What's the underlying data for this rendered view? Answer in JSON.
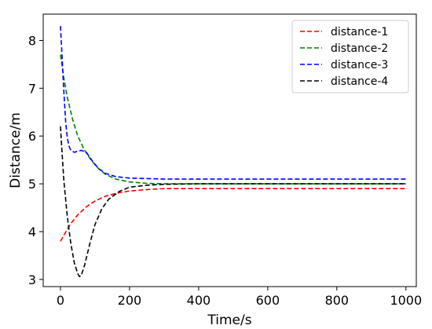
{
  "chart_data": {
    "type": "line",
    "title": "",
    "xlabel": "Time/s",
    "ylabel": "Distance/m",
    "xlim": [
      -50,
      1030
    ],
    "ylim": [
      2.85,
      8.55
    ],
    "xticks": [
      0,
      200,
      400,
      600,
      800,
      1000
    ],
    "yticks": [
      3,
      4,
      5,
      6,
      7,
      8
    ],
    "grid": false,
    "legend_position": "top-right",
    "line_style": "dashed",
    "series": [
      {
        "name": "distance-1",
        "color": "#ff0000",
        "points": [
          [
            0,
            3.8
          ],
          [
            5,
            3.86
          ],
          [
            15,
            3.99
          ],
          [
            30,
            4.17
          ],
          [
            50,
            4.35
          ],
          [
            75,
            4.52
          ],
          [
            100,
            4.64
          ],
          [
            130,
            4.74
          ],
          [
            160,
            4.8
          ],
          [
            200,
            4.85
          ],
          [
            250,
            4.88
          ],
          [
            300,
            4.9
          ],
          [
            400,
            4.9
          ],
          [
            600,
            4.9
          ],
          [
            800,
            4.9
          ],
          [
            1000,
            4.9
          ]
        ]
      },
      {
        "name": "distance-2",
        "color": "#008000",
        "points": [
          [
            0,
            7.7
          ],
          [
            10,
            7.2
          ],
          [
            20,
            6.8
          ],
          [
            35,
            6.35
          ],
          [
            50,
            6.0
          ],
          [
            70,
            5.7
          ],
          [
            90,
            5.48
          ],
          [
            110,
            5.32
          ],
          [
            130,
            5.2
          ],
          [
            160,
            5.1
          ],
          [
            200,
            5.04
          ],
          [
            250,
            5.01
          ],
          [
            300,
            5.0
          ],
          [
            500,
            5.0
          ],
          [
            1000,
            5.0
          ]
        ]
      },
      {
        "name": "distance-3",
        "color": "#0000ff",
        "points": [
          [
            0,
            8.3
          ],
          [
            5,
            7.6
          ],
          [
            10,
            6.9
          ],
          [
            15,
            6.3
          ],
          [
            20,
            5.95
          ],
          [
            25,
            5.78
          ],
          [
            30,
            5.7
          ],
          [
            40,
            5.66
          ],
          [
            50,
            5.68
          ],
          [
            60,
            5.7
          ],
          [
            75,
            5.66
          ],
          [
            90,
            5.5
          ],
          [
            110,
            5.32
          ],
          [
            130,
            5.22
          ],
          [
            160,
            5.15
          ],
          [
            200,
            5.12
          ],
          [
            300,
            5.1
          ],
          [
            500,
            5.1
          ],
          [
            1000,
            5.1
          ]
        ]
      },
      {
        "name": "distance-4",
        "color": "#000000",
        "points": [
          [
            0,
            6.2
          ],
          [
            5,
            5.6
          ],
          [
            10,
            5.05
          ],
          [
            20,
            4.3
          ],
          [
            30,
            3.75
          ],
          [
            40,
            3.35
          ],
          [
            50,
            3.12
          ],
          [
            55,
            3.06
          ],
          [
            60,
            3.08
          ],
          [
            70,
            3.3
          ],
          [
            85,
            3.75
          ],
          [
            100,
            4.15
          ],
          [
            120,
            4.48
          ],
          [
            140,
            4.68
          ],
          [
            170,
            4.84
          ],
          [
            200,
            4.93
          ],
          [
            250,
            4.97
          ],
          [
            300,
            4.99
          ],
          [
            400,
            5.0
          ],
          [
            600,
            5.0
          ],
          [
            1000,
            5.0
          ]
        ]
      }
    ]
  }
}
